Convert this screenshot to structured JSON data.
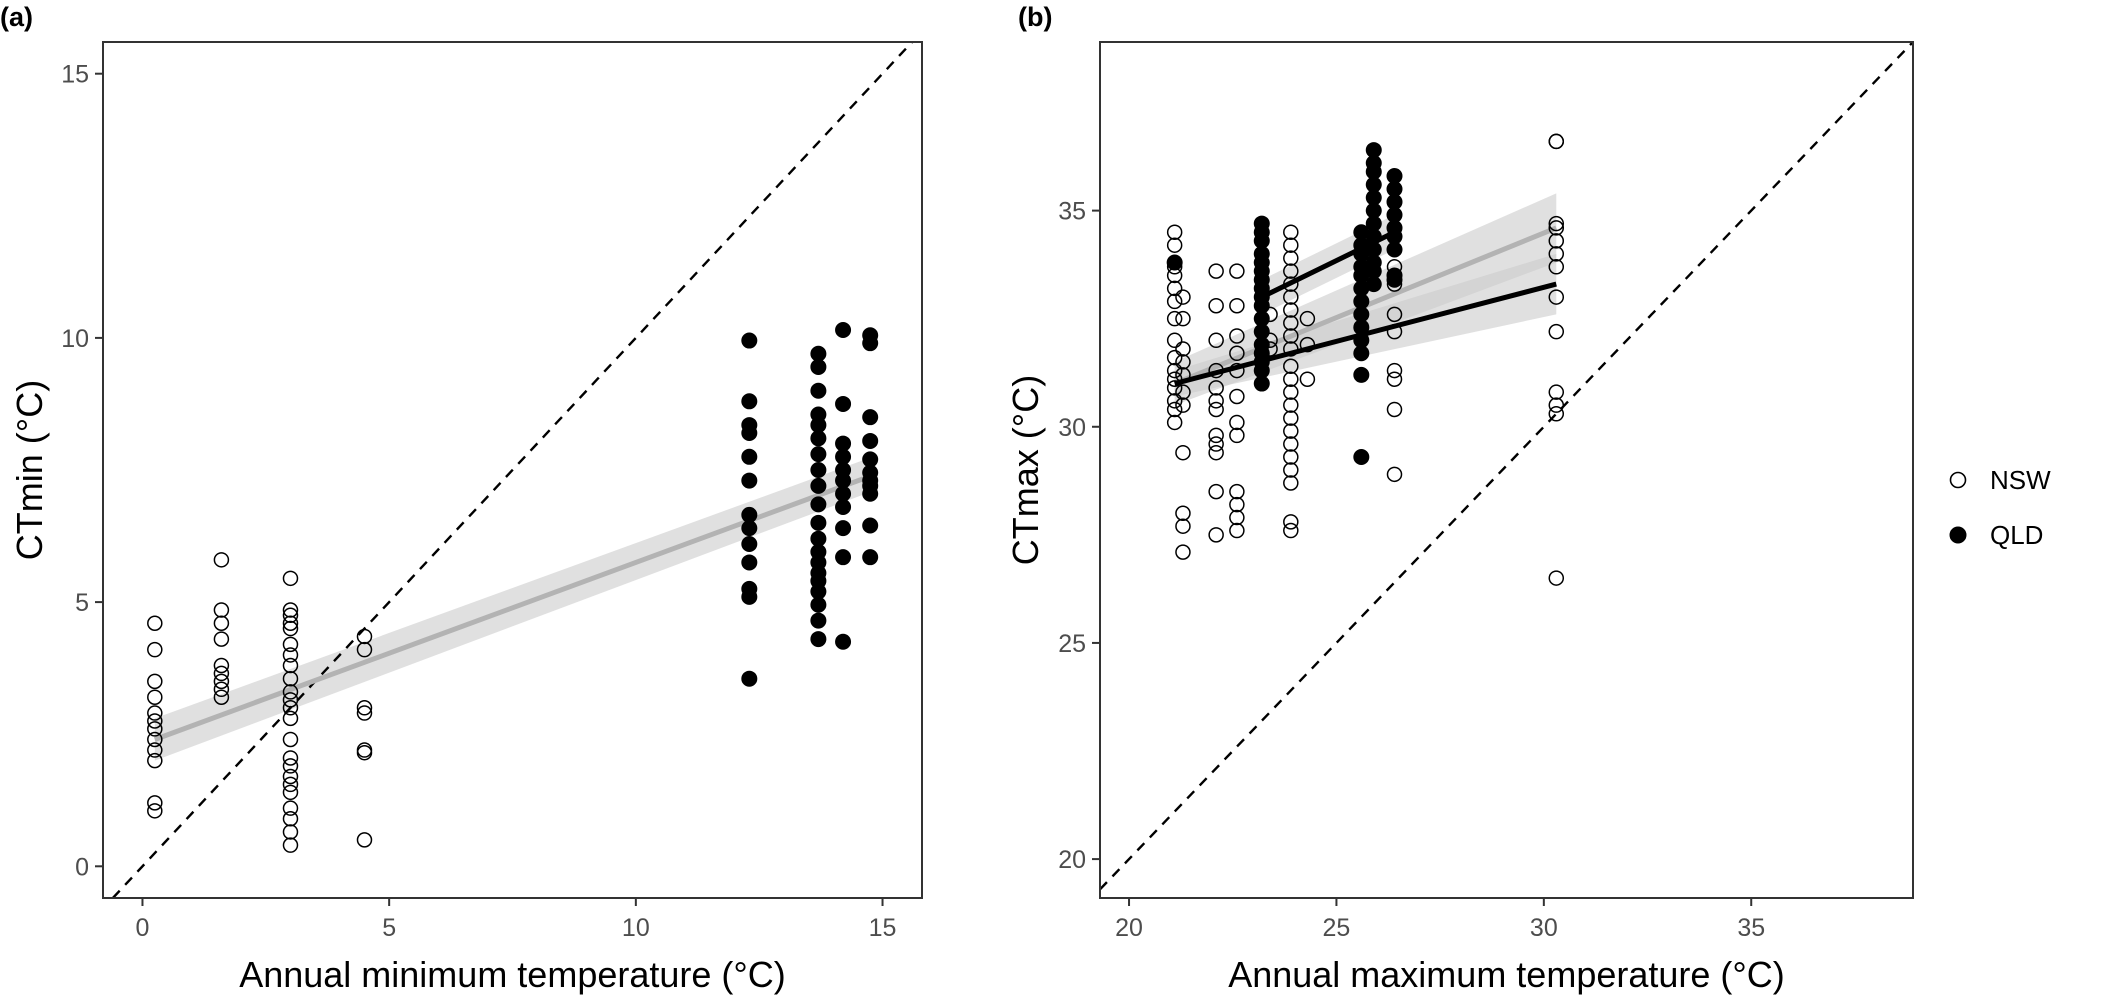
{
  "legend": {
    "entries": [
      {
        "label": "NSW",
        "style": "open"
      },
      {
        "label": "QLD",
        "style": "filled"
      }
    ],
    "position": "right"
  },
  "colors": {
    "qld_point": "#000000",
    "nsw_point": "#ffffff",
    "nsw_line": "#b3b3b3",
    "qld_line": "#000000",
    "ribbon": "#cccccc",
    "axis": "#333333",
    "tick_text": "#4d4d4d"
  },
  "chart_data": [
    {
      "panel": "(a)",
      "type": "scatter",
      "xlabel": "Annual minimum temperature (°C)",
      "ylabel": "CTmin (°C)",
      "xlim": [
        -0.8,
        15.8
      ],
      "ylim": [
        -0.6,
        15.6
      ],
      "xticks": [
        0,
        5,
        10,
        15
      ],
      "yticks": [
        0,
        5,
        10,
        15
      ],
      "grid": false,
      "reference_line": "1:1 dashed",
      "series": [
        {
          "name": "NSW",
          "style": "open",
          "groups": [
            {
              "x": 0.25,
              "y": [
                4.6,
                4.1,
                3.5,
                3.2,
                2.9,
                2.75,
                2.6,
                2.4,
                2.2,
                2.0,
                1.2,
                1.05
              ]
            },
            {
              "x": 1.6,
              "y": [
                5.8,
                4.85,
                4.6,
                4.3,
                3.8,
                3.65,
                3.5,
                3.35,
                3.2
              ]
            },
            {
              "x": 3.0,
              "y": [
                5.45,
                4.85,
                4.75,
                4.6,
                4.5,
                4.2,
                4.0,
                3.8,
                3.55,
                3.3,
                3.15,
                3.0,
                2.8,
                2.4,
                2.05,
                1.9,
                1.7,
                1.55,
                1.4,
                1.1,
                0.9,
                0.65,
                0.4
              ]
            },
            {
              "x": 4.5,
              "y": [
                4.35,
                4.1,
                3.0,
                2.9,
                2.2,
                2.15,
                0.5
              ]
            }
          ],
          "fit": {
            "x": [
              0.25,
              14.8
            ],
            "y": [
              2.4,
              7.4
            ],
            "ci_low": [
              2.0,
              7.1
            ],
            "ci_high": [
              2.8,
              7.75
            ]
          }
        },
        {
          "name": "QLD",
          "style": "filled",
          "groups": [
            {
              "x": 12.3,
              "y": [
                9.95,
                8.8,
                8.35,
                8.2,
                7.75,
                7.3,
                6.65,
                6.4,
                6.1,
                5.75,
                5.25,
                5.1,
                3.55
              ]
            },
            {
              "x": 13.7,
              "y": [
                9.7,
                9.45,
                9.0,
                8.55,
                8.35,
                8.1,
                7.8,
                7.5,
                7.2,
                6.85,
                6.5,
                6.2,
                5.95,
                5.75,
                5.55,
                5.4,
                5.2,
                4.95,
                4.65,
                4.3
              ]
            },
            {
              "x": 14.2,
              "y": [
                10.15,
                8.75,
                8.0,
                7.75,
                7.5,
                7.3,
                7.05,
                6.8,
                6.4,
                5.85,
                4.25
              ]
            },
            {
              "x": 14.75,
              "y": [
                10.05,
                9.9,
                8.5,
                8.05,
                7.7,
                7.45,
                7.3,
                7.2,
                7.05,
                6.45,
                5.85
              ]
            }
          ]
        }
      ]
    },
    {
      "panel": "(b)",
      "type": "scatter",
      "xlabel": "Annual maximum temperature (°C)",
      "ylabel": "CTmax (°C)",
      "xlim": [
        19.3,
        38.9
      ],
      "ylim": [
        19.1,
        38.9
      ],
      "xticks": [
        20,
        25,
        30,
        35
      ],
      "yticks": [
        20,
        25,
        30,
        35
      ],
      "grid": false,
      "reference_line": "1:1 dashed",
      "series": [
        {
          "name": "NSW",
          "style": "open",
          "groups": [
            {
              "x": 21.1,
              "y": [
                34.5,
                34.2,
                33.7,
                33.5,
                33.2,
                32.9,
                32.5,
                32.0,
                31.6,
                31.3,
                31.1,
                30.9,
                30.6,
                30.4,
                30.1
              ]
            },
            {
              "x": 21.3,
              "y": [
                33.0,
                32.5,
                31.8,
                31.5,
                31.2,
                30.8,
                30.5,
                29.4,
                28.0,
                27.7,
                27.1
              ]
            },
            {
              "x": 22.1,
              "y": [
                33.6,
                32.8,
                32.0,
                31.3,
                30.9,
                30.6,
                30.4,
                29.8,
                29.6,
                29.4,
                28.5,
                27.5
              ]
            },
            {
              "x": 22.6,
              "y": [
                33.6,
                32.8,
                32.1,
                31.7,
                31.3,
                30.7,
                30.1,
                29.8,
                28.5,
                28.2,
                27.9,
                27.6
              ]
            },
            {
              "x": 23.4,
              "y": [
                32.6,
                32.0,
                31.8
              ]
            },
            {
              "x": 23.9,
              "y": [
                34.5,
                34.2,
                33.9,
                33.6,
                33.3,
                33.0,
                32.7,
                32.4,
                32.1,
                31.8,
                31.4,
                31.1,
                30.8,
                30.5,
                30.2,
                29.9,
                29.6,
                29.3,
                29.0,
                28.7,
                27.8,
                27.6
              ]
            },
            {
              "x": 24.3,
              "y": [
                32.5,
                31.9,
                31.1
              ]
            },
            {
              "x": 26.4,
              "y": [
                33.7,
                33.3,
                32.6,
                32.2,
                31.3,
                31.1,
                30.4,
                28.9
              ]
            },
            {
              "x": 30.3,
              "y": [
                36.6,
                36.6,
                34.7,
                34.6,
                34.3,
                34.0,
                33.7,
                33.0,
                32.2,
                30.8,
                30.5,
                30.3,
                26.5
              ]
            }
          ],
          "fit": {
            "x": [
              21.1,
              30.3
            ],
            "y": [
              31.0,
              34.6
            ],
            "ci_low": [
              30.5,
              33.8
            ],
            "ci_high": [
              31.5,
              35.4
            ]
          }
        },
        {
          "name": "QLD",
          "style": "filled",
          "groups": [
            {
              "x": 21.1,
              "y": [
                33.8
              ]
            },
            {
              "x": 23.2,
              "y": [
                34.7,
                34.5,
                34.3,
                34.0,
                33.8,
                33.6,
                33.4,
                33.2,
                33.0,
                32.8,
                32.5,
                32.2,
                31.9,
                31.7,
                31.5,
                31.3,
                31.0
              ]
            },
            {
              "x": 25.6,
              "y": [
                34.5,
                34.2,
                34.0,
                33.7,
                33.5,
                33.2,
                32.9,
                32.6,
                32.3,
                32.0,
                31.7,
                31.2,
                29.3
              ]
            },
            {
              "x": 25.9,
              "y": [
                36.4,
                36.1,
                35.9,
                35.6,
                35.3,
                35.0,
                34.7,
                34.4,
                34.1,
                33.8,
                33.6,
                33.3
              ]
            },
            {
              "x": 26.4,
              "y": [
                35.8,
                35.5,
                35.2,
                34.9,
                34.6,
                34.4,
                34.1,
                33.5,
                33.4
              ]
            }
          ],
          "fits": [
            {
              "x": [
                21.1,
                30.3
              ],
              "y": [
                31.0,
                33.3
              ],
              "ci_low": [
                30.7,
                32.6
              ],
              "ci_high": [
                31.3,
                34.0
              ]
            },
            {
              "x": [
                23.2,
                26.4
              ],
              "y": [
                33.0,
                34.5
              ],
              "ci_low": [
                32.6,
                34.1
              ],
              "ci_high": [
                33.4,
                34.9
              ]
            }
          ]
        }
      ]
    }
  ]
}
